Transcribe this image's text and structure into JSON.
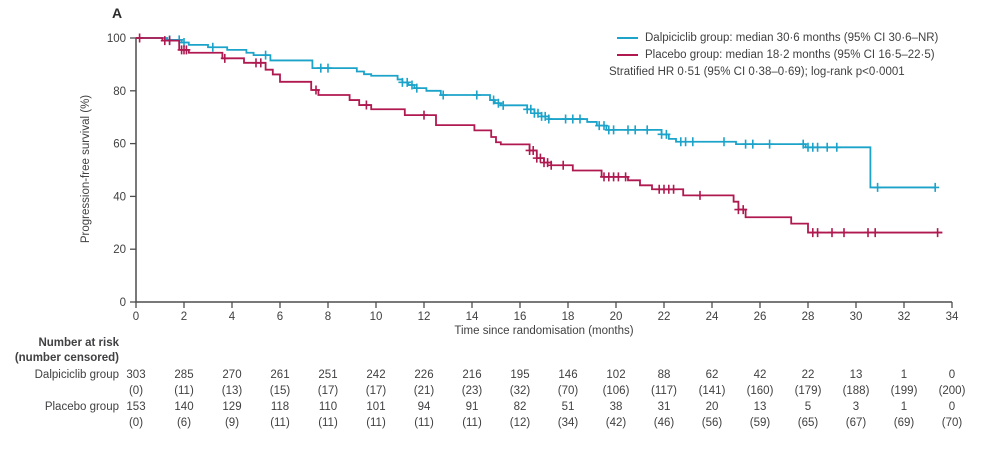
{
  "panel_label": "A",
  "colors": {
    "dalpiciclib": "#1CA3C9",
    "placebo": "#B01950",
    "axis": "#4D4D4F",
    "text": "#414042"
  },
  "legend": {
    "entries": [
      {
        "label": "Dalpiciclib group: median 30·6 months (95% CI 30·6–NR)",
        "color": "#1CA3C9"
      },
      {
        "label": "Placebo group: median 18·2 months (95% CI 16·5–22·5)",
        "color": "#B01950"
      }
    ],
    "note": "Stratified HR 0·51 (95% CI 0·38–0·69); log-rank p<0·0001"
  },
  "chart_data": {
    "type": "line",
    "subtype": "kaplan_meier_step",
    "title": "",
    "xlabel": "Time since randomisation (months)",
    "ylabel": "Progression-free survival (%)",
    "xlim": [
      0,
      34
    ],
    "ylim": [
      0,
      100
    ],
    "xticks": [
      0,
      2,
      4,
      6,
      8,
      10,
      12,
      14,
      16,
      18,
      20,
      22,
      24,
      26,
      28,
      30,
      32,
      34
    ],
    "yticks": [
      0,
      20,
      40,
      60,
      80,
      100
    ],
    "grid": false,
    "legend_position": "top-right",
    "series": [
      {
        "name": "Dalpiciclib group",
        "color": "#1CA3C9",
        "steps": [
          [
            0,
            100
          ],
          [
            1.3,
            99.3
          ],
          [
            1.9,
            98.3
          ],
          [
            2.2,
            97.4
          ],
          [
            3.0,
            96.5
          ],
          [
            3.8,
            95.5
          ],
          [
            4.6,
            94.4
          ],
          [
            4.9,
            93.5
          ],
          [
            5.6,
            91.5
          ],
          [
            7.35,
            88.6
          ],
          [
            9.2,
            87.3
          ],
          [
            9.5,
            86.3
          ],
          [
            9.8,
            85.7
          ],
          [
            10.9,
            84.3
          ],
          [
            11.1,
            83.2
          ],
          [
            11.35,
            82.2
          ],
          [
            11.6,
            81.0
          ],
          [
            12.1,
            80.0
          ],
          [
            12.7,
            78.4
          ],
          [
            14.75,
            76.5
          ],
          [
            14.95,
            75.3
          ],
          [
            15.2,
            74.5
          ],
          [
            16.3,
            73.0
          ],
          [
            16.6,
            71.5
          ],
          [
            16.9,
            70.3
          ],
          [
            17.2,
            69.3
          ],
          [
            18.8,
            68.2
          ],
          [
            19.2,
            66.8
          ],
          [
            19.6,
            65.2
          ],
          [
            21.9,
            63.5
          ],
          [
            22.2,
            61.8
          ],
          [
            22.5,
            60.7
          ],
          [
            25.0,
            59.8
          ],
          [
            27.9,
            58.6
          ],
          [
            30.6,
            43.4
          ],
          [
            33.3,
            43.4
          ]
        ],
        "censor_times": [
          1.4,
          1.8,
          2.0,
          3.2,
          5.4,
          7.7,
          8.0,
          11.1,
          11.3,
          11.5,
          11.7,
          12.8,
          14.2,
          14.9,
          15.1,
          15.3,
          16.3,
          16.45,
          16.6,
          16.75,
          16.9,
          17.05,
          17.2,
          17.9,
          18.2,
          18.5,
          19.3,
          19.5,
          19.7,
          19.9,
          20.5,
          20.8,
          21.3,
          21.9,
          22.1,
          22.7,
          22.9,
          23.2,
          24.5,
          25.4,
          25.7,
          26.4,
          27.8,
          28.0,
          28.2,
          28.4,
          28.8,
          29.2,
          30.9,
          33.3
        ]
      },
      {
        "name": "Placebo group",
        "color": "#B01950",
        "steps": [
          [
            0,
            100
          ],
          [
            1.1,
            99.0
          ],
          [
            1.8,
            95.5
          ],
          [
            2.2,
            94.4
          ],
          [
            3.6,
            92.3
          ],
          [
            4.5,
            90.6
          ],
          [
            5.4,
            88.0
          ],
          [
            5.7,
            86.2
          ],
          [
            6.0,
            83.4
          ],
          [
            7.3,
            80.3
          ],
          [
            7.6,
            78.4
          ],
          [
            8.9,
            76.5
          ],
          [
            9.3,
            74.6
          ],
          [
            9.8,
            73.0
          ],
          [
            11.2,
            70.8
          ],
          [
            12.5,
            67.0
          ],
          [
            14.1,
            65.0
          ],
          [
            14.8,
            62.5
          ],
          [
            15.0,
            60.5
          ],
          [
            15.2,
            59.7
          ],
          [
            16.4,
            57.4
          ],
          [
            16.7,
            54.5
          ],
          [
            17.0,
            52.8
          ],
          [
            17.3,
            51.8
          ],
          [
            18.2,
            49.8
          ],
          [
            19.4,
            47.4
          ],
          [
            20.5,
            46.1
          ],
          [
            21.0,
            44.2
          ],
          [
            21.5,
            42.7
          ],
          [
            22.8,
            40.4
          ],
          [
            24.9,
            38.0
          ],
          [
            25.1,
            35.0
          ],
          [
            25.4,
            32.1
          ],
          [
            27.3,
            29.7
          ],
          [
            28.0,
            26.3
          ],
          [
            33.6,
            26.3
          ]
        ],
        "censor_times": [
          0.15,
          1.2,
          1.4,
          1.9,
          2.0,
          2.1,
          3.7,
          5.0,
          5.2,
          7.5,
          9.6,
          12.0,
          16.4,
          16.55,
          16.7,
          16.85,
          17.0,
          17.15,
          17.3,
          17.8,
          19.5,
          19.7,
          19.9,
          20.1,
          20.4,
          21.8,
          22.0,
          22.2,
          22.4,
          23.5,
          25.1,
          25.3,
          28.2,
          28.4,
          29.0,
          29.5,
          30.5,
          30.8,
          33.4
        ]
      }
    ]
  },
  "risk_table": {
    "header_line1": "Number at risk",
    "header_line2": "(number censored)",
    "months": [
      0,
      2,
      4,
      6,
      8,
      10,
      12,
      14,
      16,
      18,
      20,
      22,
      24,
      26,
      28,
      30,
      32,
      34
    ],
    "rows": [
      {
        "label": "Dalpiciclib group",
        "at_risk": [
          "303",
          "285",
          "270",
          "261",
          "251",
          "242",
          "226",
          "216",
          "195",
          "146",
          "102",
          "88",
          "62",
          "42",
          "22",
          "13",
          "1",
          "0"
        ],
        "censored": [
          "(0)",
          "(11)",
          "(13)",
          "(15)",
          "(17)",
          "(17)",
          "(21)",
          "(23)",
          "(32)",
          "(70)",
          "(106)",
          "(117)",
          "(141)",
          "(160)",
          "(179)",
          "(188)",
          "(199)",
          "(200)"
        ]
      },
      {
        "label": "Placebo group",
        "at_risk": [
          "153",
          "140",
          "129",
          "118",
          "110",
          "101",
          "94",
          "91",
          "82",
          "51",
          "38",
          "31",
          "20",
          "13",
          "5",
          "3",
          "1",
          "0"
        ],
        "censored": [
          "(0)",
          "(6)",
          "(9)",
          "(11)",
          "(11)",
          "(11)",
          "(11)",
          "(11)",
          "(12)",
          "(34)",
          "(42)",
          "(46)",
          "(56)",
          "(59)",
          "(65)",
          "(67)",
          "(69)",
          "(70)"
        ]
      }
    ]
  }
}
